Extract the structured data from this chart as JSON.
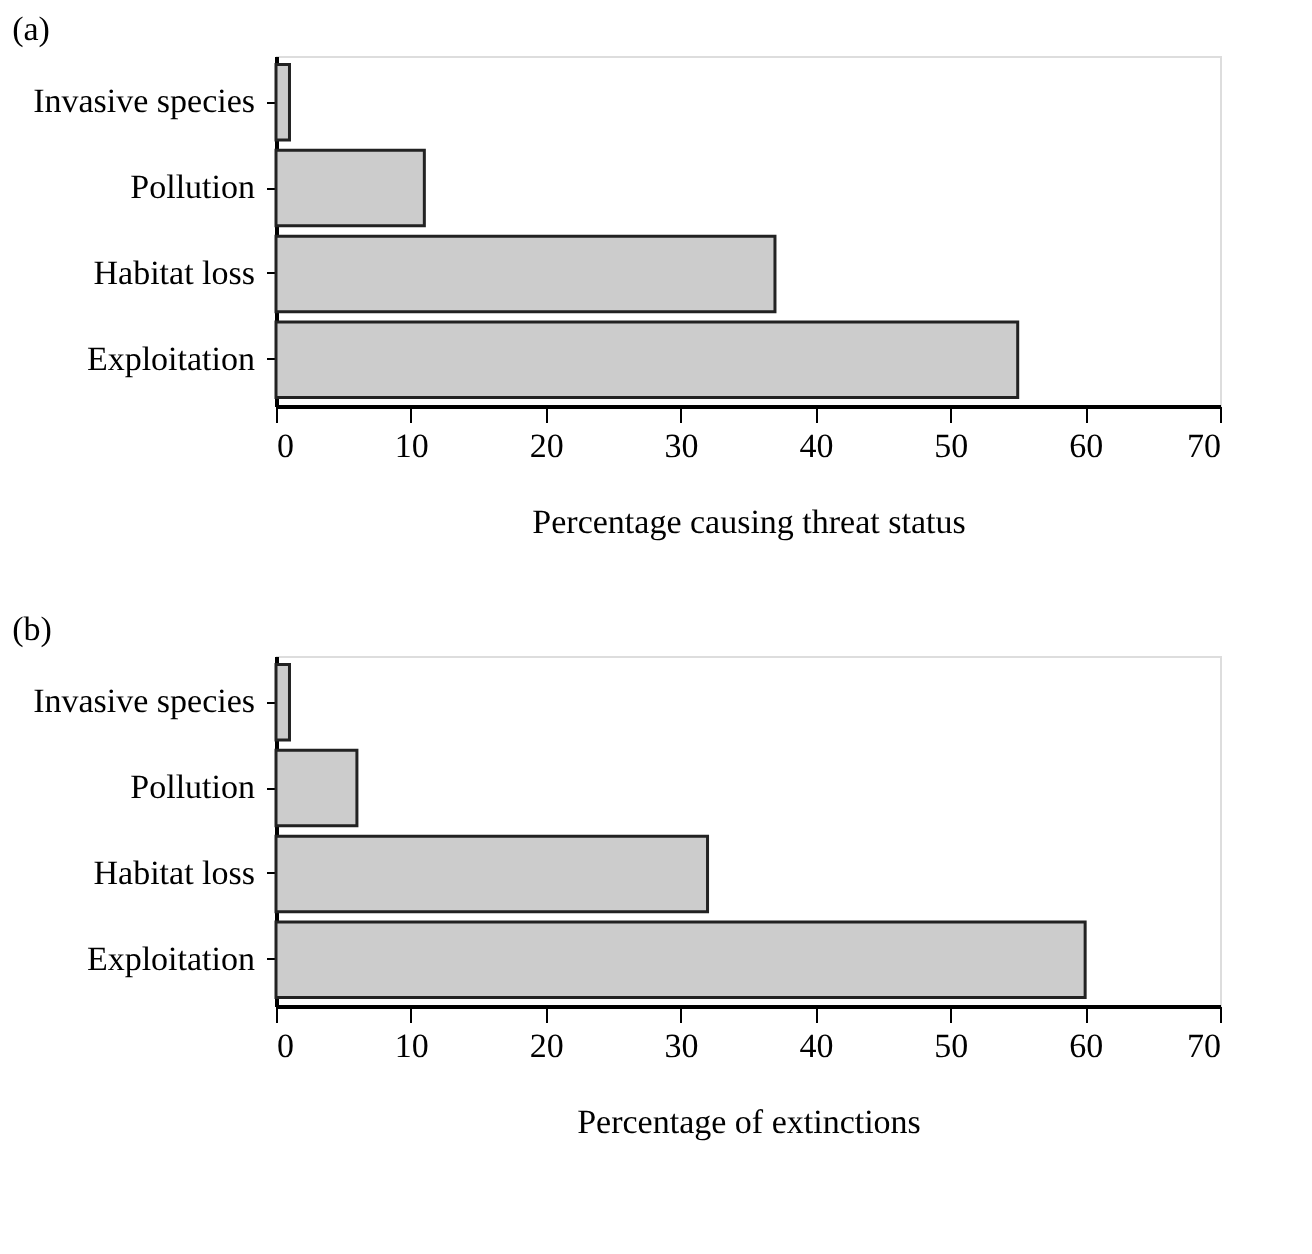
{
  "chart_data": [
    {
      "type": "bar",
      "orientation": "horizontal",
      "title": "(a)",
      "xlabel": "Percentage causing threat status",
      "categories": [
        "Invasive species",
        "Pollution",
        "Habitat loss",
        "Exploitation"
      ],
      "values": [
        1,
        11,
        37,
        55
      ],
      "color": "#cccccc",
      "xlim": [
        0,
        70
      ],
      "xticks": [
        0,
        10,
        20,
        30,
        40,
        50,
        60,
        70
      ],
      "grid": false
    },
    {
      "type": "bar",
      "orientation": "horizontal",
      "title": "(b)",
      "xlabel": "Percentage of extinctions",
      "categories": [
        "Invasive species",
        "Pollution",
        "Habitat loss",
        "Exploitation"
      ],
      "values": [
        1,
        6,
        32,
        60
      ],
      "color": "#cccccc",
      "xlim": [
        0,
        70
      ],
      "xticks": [
        0,
        10,
        20,
        30,
        40,
        50,
        60,
        70
      ],
      "grid": false
    }
  ]
}
